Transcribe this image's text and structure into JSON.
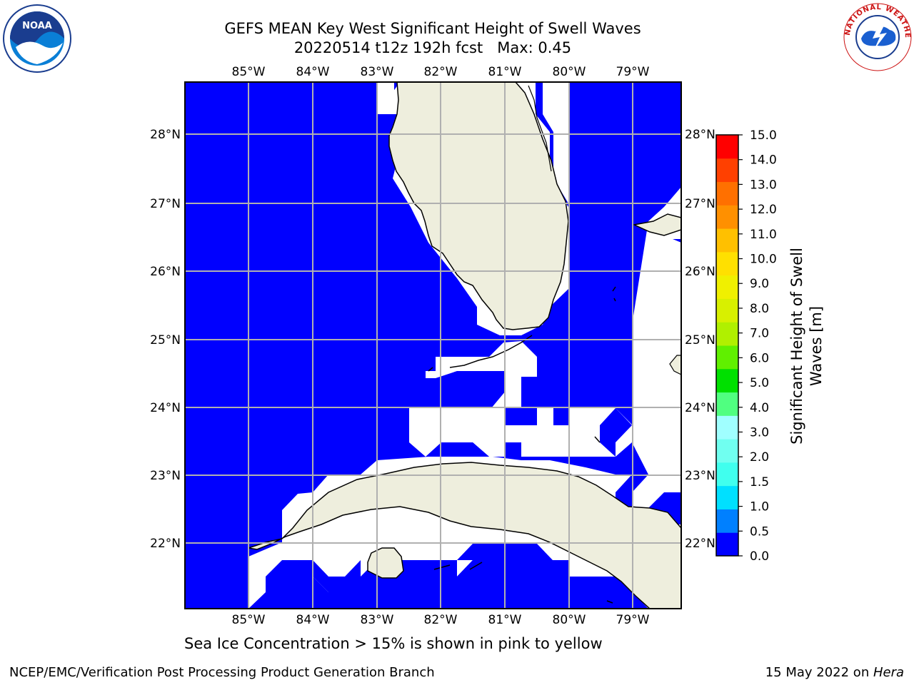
{
  "header": {
    "title_line1": "GEFS MEAN Key West Significant Height of Swell Waves",
    "title_line2": "20220514 t12z 192h fcst   Max: 0.45"
  },
  "logos": {
    "noaa_text": "NOAA",
    "nws_text": "NATIONAL WEATHER SERVICE"
  },
  "map": {
    "lon_labels": [
      "85°W",
      "84°W",
      "83°W",
      "82°W",
      "81°W",
      "80°W",
      "79°W"
    ],
    "lat_labels": [
      "28°N",
      "27°N",
      "26°N",
      "25°N",
      "24°N",
      "23°N",
      "22°N"
    ],
    "colors": {
      "ocean": "#0000ff",
      "land": "#eeeedd",
      "grid": "#b0b0b0"
    }
  },
  "colorbar": {
    "label": "Significant Height of Swell Waves [m]",
    "ticks": [
      "0.0",
      "0.5",
      "1.0",
      "1.5",
      "2.0",
      "3.0",
      "4.0",
      "5.0",
      "6.0",
      "7.0",
      "8.0",
      "9.0",
      "10.0",
      "11.0",
      "12.0",
      "13.0",
      "14.0",
      "15.0"
    ],
    "colors": [
      "#0000ff",
      "#0080ff",
      "#00e0ff",
      "#40ffee",
      "#70fff0",
      "#a0ffff",
      "#50ff80",
      "#00e000",
      "#60f000",
      "#b0f000",
      "#d8f000",
      "#f0f000",
      "#ffe000",
      "#ffc000",
      "#ff9000",
      "#ff7000",
      "#ff4000",
      "#ff0000"
    ]
  },
  "footer": {
    "note": "Sea Ice Concentration > 15% is shown in pink to yellow",
    "credit": "NCEP/EMC/Verification Post Processing Product Generation Branch",
    "date_prefix": "15 May 2022 on ",
    "date_host": "Hera"
  }
}
